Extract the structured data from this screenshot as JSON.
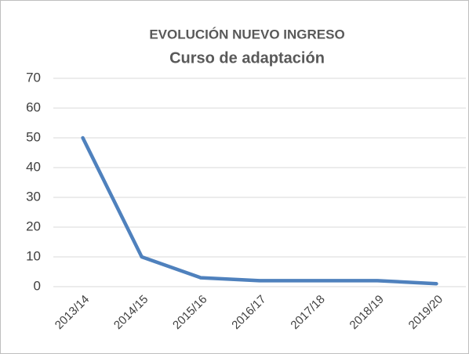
{
  "chart_data": {
    "type": "line",
    "title": "EVOLUCIÓN NUEVO INGRESO",
    "subtitle": "Curso de adaptación",
    "categories": [
      "2013/14",
      "2014/15",
      "2015/16",
      "2016/17",
      "2017/18",
      "2018/19",
      "2019/20"
    ],
    "values": [
      50,
      10,
      3,
      2,
      2,
      2,
      1
    ],
    "color": "#4f81bd",
    "ylim": [
      0,
      70
    ],
    "yticks": [
      0,
      10,
      20,
      30,
      40,
      50,
      60,
      70
    ],
    "grid": true
  }
}
